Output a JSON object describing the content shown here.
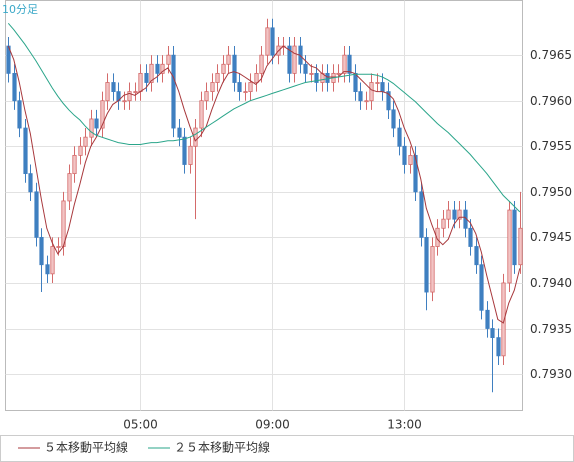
{
  "chart_data": {
    "type": "candlestick",
    "title": "10分足",
    "x": [
      "01:00",
      "01:10",
      "01:20",
      "01:30",
      "01:40",
      "01:50",
      "02:00",
      "02:10",
      "02:20",
      "02:30",
      "02:40",
      "02:50",
      "03:00",
      "03:10",
      "03:20",
      "03:30",
      "03:40",
      "03:50",
      "04:00",
      "04:10",
      "04:20",
      "04:30",
      "04:40",
      "04:50",
      "05:00",
      "05:10",
      "05:20",
      "05:30",
      "05:40",
      "05:50",
      "06:00",
      "06:10",
      "06:20",
      "06:30",
      "06:40",
      "06:50",
      "07:00",
      "07:10",
      "07:20",
      "07:30",
      "07:40",
      "07:50",
      "08:00",
      "08:10",
      "08:20",
      "08:30",
      "08:40",
      "08:50",
      "09:00",
      "09:10",
      "09:20",
      "09:30",
      "09:40",
      "09:50",
      "10:00",
      "10:10",
      "10:20",
      "10:30",
      "10:40",
      "10:50",
      "11:00",
      "11:10",
      "11:20",
      "11:30",
      "11:40",
      "11:50",
      "12:00",
      "12:10",
      "12:20",
      "12:30",
      "12:40",
      "12:50",
      "13:00",
      "13:10",
      "13:20",
      "13:30",
      "13:40",
      "13:50",
      "14:00",
      "14:10",
      "14:20",
      "14:30",
      "14:40",
      "14:50",
      "15:00",
      "15:10",
      "15:20",
      "15:30",
      "15:40",
      "15:50",
      "16:00",
      "16:10",
      "16:20",
      "16:30"
    ],
    "open": [
      0.7966,
      0.7963,
      0.796,
      0.7957,
      0.7952,
      0.795,
      0.7945,
      0.7942,
      0.7941,
      0.7944,
      0.7944,
      0.7949,
      0.7952,
      0.7954,
      0.7955,
      0.7956,
      0.7958,
      0.7957,
      0.796,
      0.7962,
      0.7961,
      0.796,
      0.796,
      0.7961,
      0.7961,
      0.7963,
      0.7962,
      0.7964,
      0.7963,
      0.7964,
      0.7965,
      0.7957,
      0.7956,
      0.7953,
      0.7955,
      0.7957,
      0.796,
      0.7961,
      0.7962,
      0.7963,
      0.7964,
      0.7965,
      0.7962,
      0.7961,
      0.7961,
      0.7962,
      0.7963,
      0.7965,
      0.7968,
      0.7965,
      0.7966,
      0.7966,
      0.7963,
      0.7966,
      0.7964,
      0.7963,
      0.7963,
      0.7962,
      0.7963,
      0.7962,
      0.7963,
      0.7963,
      0.7965,
      0.7963,
      0.7961,
      0.796,
      0.796,
      0.7962,
      0.7962,
      0.7961,
      0.7959,
      0.7957,
      0.7955,
      0.7953,
      0.7954,
      0.795,
      0.7945,
      0.7939,
      0.7944,
      0.7946,
      0.7947,
      0.7948,
      0.7947,
      0.7948,
      0.7946,
      0.7944,
      0.7942,
      0.7937,
      0.7935,
      0.7934,
      0.7932,
      0.794,
      0.7948,
      0.7942
    ],
    "high": [
      0.7967,
      0.7964,
      0.7961,
      0.7958,
      0.7953,
      0.7951,
      0.7946,
      0.7943,
      0.7945,
      0.7945,
      0.795,
      0.7953,
      0.7955,
      0.7956,
      0.7957,
      0.7959,
      0.7959,
      0.7961,
      0.7963,
      0.7963,
      0.7962,
      0.7961,
      0.7962,
      0.7962,
      0.7964,
      0.7964,
      0.7965,
      0.7965,
      0.7965,
      0.7966,
      0.7966,
      0.7958,
      0.7957,
      0.7956,
      0.7958,
      0.7961,
      0.7962,
      0.7963,
      0.7964,
      0.7965,
      0.7966,
      0.7966,
      0.7963,
      0.7962,
      0.7963,
      0.7964,
      0.7966,
      0.7969,
      0.7969,
      0.7967,
      0.7967,
      0.7967,
      0.7967,
      0.7967,
      0.7965,
      0.7964,
      0.7964,
      0.7964,
      0.7964,
      0.7964,
      0.7964,
      0.7966,
      0.7966,
      0.7964,
      0.7962,
      0.7961,
      0.7963,
      0.7963,
      0.7963,
      0.7962,
      0.796,
      0.7958,
      0.7956,
      0.7955,
      0.7955,
      0.7951,
      0.7946,
      0.7945,
      0.7947,
      0.7948,
      0.7949,
      0.7949,
      0.7949,
      0.7949,
      0.7947,
      0.7945,
      0.7943,
      0.7938,
      0.7936,
      0.7935,
      0.7941,
      0.7949,
      0.7949,
      0.795
    ],
    "low": [
      0.7962,
      0.7959,
      0.7956,
      0.7951,
      0.7949,
      0.7944,
      0.7939,
      0.794,
      0.794,
      0.7943,
      0.7943,
      0.7948,
      0.7951,
      0.7953,
      0.7954,
      0.7955,
      0.7956,
      0.7956,
      0.7959,
      0.796,
      0.7959,
      0.7959,
      0.7959,
      0.796,
      0.796,
      0.7961,
      0.7961,
      0.7962,
      0.7962,
      0.7963,
      0.7956,
      0.7955,
      0.7952,
      0.7952,
      0.7947,
      0.7956,
      0.7959,
      0.796,
      0.7961,
      0.7962,
      0.7963,
      0.7961,
      0.796,
      0.796,
      0.796,
      0.7961,
      0.7962,
      0.7964,
      0.7964,
      0.7964,
      0.7965,
      0.7962,
      0.7962,
      0.7963,
      0.7962,
      0.7962,
      0.7961,
      0.7961,
      0.7961,
      0.7961,
      0.7962,
      0.7962,
      0.7962,
      0.796,
      0.7959,
      0.7959,
      0.7959,
      0.7961,
      0.796,
      0.7958,
      0.7956,
      0.7954,
      0.7952,
      0.7952,
      0.7949,
      0.7944,
      0.7937,
      0.7938,
      0.7943,
      0.7945,
      0.7946,
      0.7946,
      0.7946,
      0.7945,
      0.7943,
      0.7941,
      0.7936,
      0.7934,
      0.7928,
      0.7931,
      0.7931,
      0.7939,
      0.7941,
      0.7941
    ],
    "close": [
      0.7963,
      0.796,
      0.7957,
      0.7952,
      0.795,
      0.7945,
      0.7942,
      0.7941,
      0.7944,
      0.7944,
      0.7949,
      0.7952,
      0.7954,
      0.7955,
      0.7956,
      0.7958,
      0.7957,
      0.796,
      0.7962,
      0.7961,
      0.796,
      0.796,
      0.7961,
      0.7961,
      0.7963,
      0.7962,
      0.7964,
      0.7963,
      0.7964,
      0.7965,
      0.7957,
      0.7956,
      0.7953,
      0.7955,
      0.7957,
      0.796,
      0.7961,
      0.7962,
      0.7963,
      0.7964,
      0.7965,
      0.7962,
      0.7961,
      0.7961,
      0.7962,
      0.7963,
      0.7965,
      0.7968,
      0.7965,
      0.7966,
      0.7966,
      0.7963,
      0.7966,
      0.7964,
      0.7963,
      0.7963,
      0.7962,
      0.7963,
      0.7962,
      0.7963,
      0.7963,
      0.7965,
      0.7963,
      0.7961,
      0.796,
      0.796,
      0.7962,
      0.7962,
      0.7961,
      0.7959,
      0.7957,
      0.7955,
      0.7953,
      0.7954,
      0.795,
      0.7945,
      0.7939,
      0.7944,
      0.7946,
      0.7947,
      0.7948,
      0.7947,
      0.7948,
      0.7946,
      0.7944,
      0.7942,
      0.7937,
      0.7935,
      0.7934,
      0.7932,
      0.794,
      0.7948,
      0.7942,
      0.7946
    ],
    "up_color": "#d46a6a",
    "up_fill": "#f2c4c4",
    "down_color": "#3f7fc0",
    "series": [
      {
        "name": "５本移動平均線",
        "color": "#a8383c",
        "values": [
          0.7966,
          0.79645,
          0.7962,
          0.7959,
          0.79564,
          0.79528,
          0.79492,
          0.7946,
          0.79444,
          0.79432,
          0.7944,
          0.7946,
          0.79486,
          0.79508,
          0.79532,
          0.7955,
          0.7956,
          0.79572,
          0.79586,
          0.79596,
          0.796,
          0.79606,
          0.79608,
          0.79606,
          0.7961,
          0.79614,
          0.79622,
          0.79626,
          0.79632,
          0.79636,
          0.79626,
          0.7961,
          0.7959,
          0.79572,
          0.79556,
          0.79562,
          0.79572,
          0.7959,
          0.79606,
          0.7962,
          0.7963,
          0.79632,
          0.7963,
          0.79626,
          0.79622,
          0.79618,
          0.79624,
          0.79638,
          0.79646,
          0.79654,
          0.7966,
          0.79656,
          0.79652,
          0.7965,
          0.79644,
          0.79638,
          0.79636,
          0.7963,
          0.79626,
          0.79626,
          0.79626,
          0.79632,
          0.79632,
          0.7963,
          0.79624,
          0.79618,
          0.79612,
          0.7961,
          0.7961,
          0.79608,
          0.79602,
          0.79588,
          0.7957,
          0.79556,
          0.79538,
          0.79514,
          0.79482,
          0.79464,
          0.79448,
          0.79442,
          0.79448,
          0.79464,
          0.79472,
          0.79472,
          0.79466,
          0.79454,
          0.79434,
          0.79408,
          0.79384,
          0.7936,
          0.79356,
          0.79378,
          0.79392,
          0.79416
        ]
      },
      {
        "name": "２５本移動平均線",
        "color": "#2aa58a",
        "values": [
          0.79685,
          0.79678,
          0.7967,
          0.79662,
          0.79653,
          0.79644,
          0.79634,
          0.79624,
          0.79614,
          0.79605,
          0.79597,
          0.7959,
          0.79584,
          0.79579,
          0.79572,
          0.79566,
          0.79562,
          0.7956,
          0.79558,
          0.79556,
          0.79554,
          0.79553,
          0.79552,
          0.79552,
          0.79552,
          0.79553,
          0.79554,
          0.79554,
          0.79555,
          0.79556,
          0.79556,
          0.79557,
          0.79558,
          0.7956,
          0.79563,
          0.79567,
          0.79571,
          0.79575,
          0.79579,
          0.79583,
          0.79587,
          0.79591,
          0.79594,
          0.79597,
          0.796,
          0.79602,
          0.79604,
          0.79606,
          0.79608,
          0.7961,
          0.79612,
          0.79614,
          0.79616,
          0.79618,
          0.7962,
          0.79621,
          0.79622,
          0.79623,
          0.79624,
          0.79625,
          0.79626,
          0.79627,
          0.79628,
          0.79629,
          0.79629,
          0.79629,
          0.79629,
          0.79628,
          0.79626,
          0.79623,
          0.79619,
          0.79614,
          0.79609,
          0.79604,
          0.79599,
          0.79593,
          0.79587,
          0.79581,
          0.79575,
          0.7957,
          0.79565,
          0.79559,
          0.79553,
          0.79547,
          0.79541,
          0.79534,
          0.79527,
          0.7952,
          0.79512,
          0.79504,
          0.79496,
          0.7949,
          0.79484,
          0.79478
        ]
      }
    ],
    "xlim": [
      "00:55",
      "16:35"
    ],
    "xticks": [
      "05:00",
      "09:00",
      "13:00"
    ],
    "ylim": [
      0.7926,
      0.7971
    ],
    "yticks": [
      {
        "value": 0.793,
        "label": "0.7930"
      },
      0.7935,
      {
        "value": 0.794,
        "label": "0.7940"
      },
      0.7945,
      {
        "value": 0.795,
        "label": "0.7950"
      },
      0.7955,
      {
        "value": 0.796,
        "label": "0.7960"
      },
      0.7965
    ],
    "grid": true
  }
}
